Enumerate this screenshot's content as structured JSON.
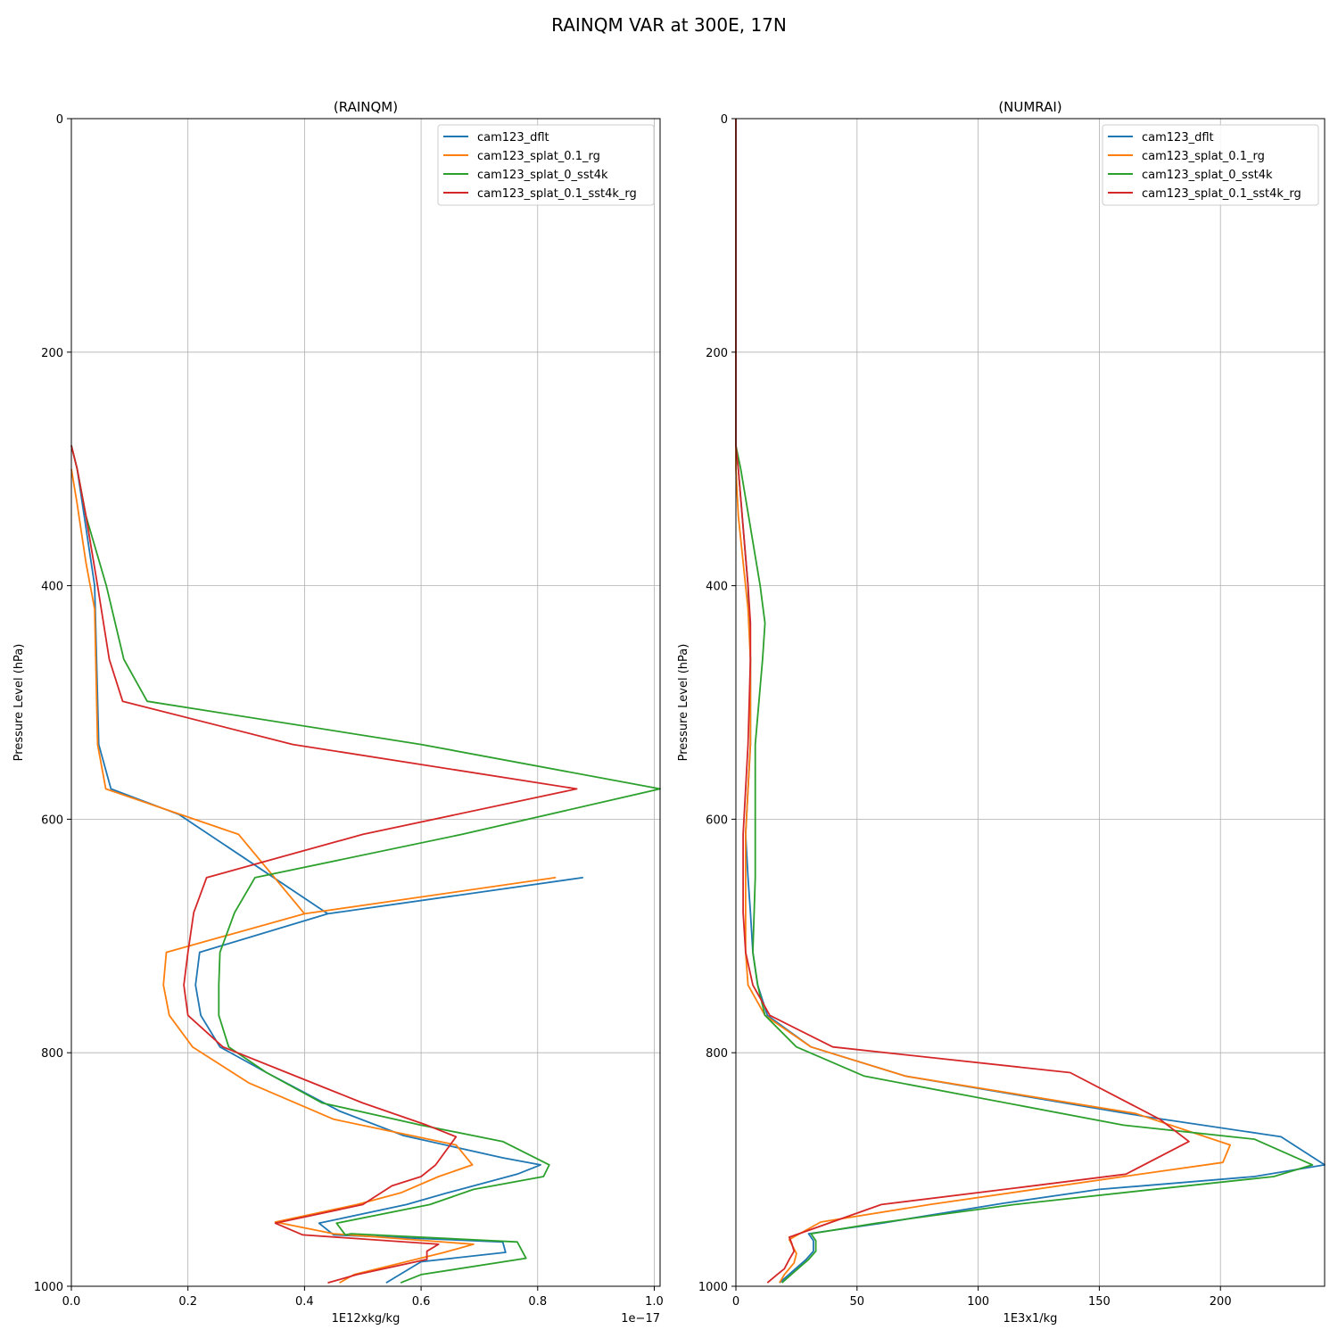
{
  "figure_title": "RAINQM VAR at 300E, 17N",
  "chart_data": [
    {
      "type": "line",
      "title": "(RAINQM)",
      "xlabel": "1E12xkg/kg",
      "ylabel": "Pressure Level (hPa)",
      "x_offset_label": "1e−17",
      "xlim": [
        0,
        1.01
      ],
      "ylim": [
        1000,
        0
      ],
      "xticks": [
        0.0,
        0.2,
        0.4,
        0.6,
        0.8,
        1.0
      ],
      "xtick_labels": [
        "0.0",
        "0.2",
        "0.4",
        "0.6",
        "0.8",
        "1.0"
      ],
      "yticks": [
        0,
        200,
        400,
        600,
        800,
        1000
      ],
      "ytick_labels": [
        "0",
        "200",
        "400",
        "600",
        "800",
        "1000"
      ],
      "grid": true,
      "legend_position": "top-right",
      "series": [
        {
          "name": "cam123_dflt",
          "color": "#1f77b4",
          "x": [
            0,
            0.01,
            0.025,
            0.04,
            0.047,
            0.068,
            0.185,
            0.44,
            0.877,
            0.44,
            0.22,
            0.213,
            0.222,
            0.255,
            0.335,
            0.46,
            0.57,
            0.74,
            0.805,
            0.765,
            0.645,
            0.575,
            0.425,
            0.45,
            0.74,
            0.745,
            0.6,
            0.54
          ],
          "y": [
            280,
            300,
            350,
            400,
            536,
            574,
            596,
            681,
            650,
            681,
            714,
            742,
            768,
            795,
            817,
            850,
            871,
            890,
            896,
            904,
            920,
            930,
            946,
            956,
            962,
            971,
            979,
            997
          ]
        },
        {
          "name": "cam123_splat_0.1_rg",
          "color": "#ff7f0e",
          "x": [
            0,
            0.01,
            0.025,
            0.04,
            0.045,
            0.059,
            0.287,
            0.4,
            0.83,
            0.4,
            0.163,
            0.158,
            0.168,
            0.208,
            0.305,
            0.45,
            0.66,
            0.688,
            0.63,
            0.565,
            0.49,
            0.35,
            0.45,
            0.69,
            0.64,
            0.485,
            0.46
          ],
          "y": [
            300,
            330,
            380,
            420,
            536,
            574,
            613,
            681,
            650,
            681,
            714,
            742,
            768,
            795,
            826,
            857,
            879,
            896,
            906,
            920,
            930,
            945,
            955,
            964,
            971,
            990,
            997
          ]
        },
        {
          "name": "cam123_splat_0_sst4k",
          "color": "#2ca02c",
          "x": [
            0,
            0.01,
            0.025,
            0.06,
            0.09,
            0.13,
            0.6,
            1.01,
            0.67,
            0.315,
            0.28,
            0.255,
            0.253,
            0.253,
            0.27,
            0.335,
            0.43,
            0.6,
            0.74,
            0.82,
            0.81,
            0.69,
            0.615,
            0.455,
            0.47,
            0.48,
            0.765,
            0.78,
            0.6,
            0.565
          ],
          "y": [
            280,
            300,
            340,
            400,
            463,
            499,
            536,
            574,
            613,
            650,
            680,
            714,
            742,
            768,
            795,
            817,
            843,
            862,
            876,
            896,
            906,
            917,
            930,
            946,
            956,
            955,
            962,
            976,
            990,
            997
          ]
        },
        {
          "name": "cam123_splat_0.1_sst4k_rg",
          "color": "#d62728",
          "x": [
            0,
            0.01,
            0.025,
            0.045,
            0.065,
            0.088,
            0.38,
            0.867,
            0.5,
            0.232,
            0.21,
            0.2,
            0.193,
            0.2,
            0.26,
            0.37,
            0.5,
            0.61,
            0.66,
            0.625,
            0.6,
            0.55,
            0.5,
            0.35,
            0.397,
            0.63,
            0.61,
            0.61,
            0.49,
            0.44
          ],
          "y": [
            280,
            300,
            340,
            400,
            463,
            499,
            536,
            574,
            613,
            650,
            680,
            714,
            742,
            768,
            795,
            817,
            843,
            862,
            872,
            896,
            906,
            914,
            930,
            946,
            956,
            964,
            970,
            977,
            990,
            997
          ]
        }
      ]
    },
    {
      "type": "line",
      "title": "(NUMRAI)",
      "xlabel": "1E3x1/kg",
      "ylabel": "Pressure Level (hPa)",
      "xlim": [
        0,
        243
      ],
      "ylim": [
        1000,
        0
      ],
      "xticks": [
        0,
        50,
        100,
        150,
        200
      ],
      "xtick_labels": [
        "0",
        "50",
        "100",
        "150",
        "200"
      ],
      "yticks": [
        0,
        200,
        400,
        600,
        800,
        1000
      ],
      "ytick_labels": [
        "0",
        "200",
        "400",
        "600",
        "800",
        "1000"
      ],
      "grid": true,
      "legend_position": "top-right",
      "series": [
        {
          "name": "cam123_dflt",
          "color": "#1f77b4",
          "x": [
            0,
            0,
            1,
            3,
            5,
            6,
            6,
            5,
            4,
            5,
            6,
            7,
            9,
            13,
            31,
            70,
            170,
            225,
            243,
            214,
            150,
            110,
            60,
            30,
            32,
            32,
            29,
            18
          ],
          "y": [
            0,
            280,
            300,
            350,
            400,
            463,
            536,
            574,
            613,
            650,
            680,
            714,
            742,
            768,
            795,
            820,
            855,
            872,
            896,
            906,
            917,
            929,
            946,
            955,
            961,
            970,
            977,
            997
          ]
        },
        {
          "name": "cam123_splat_0.1_rg",
          "color": "#ff7f0e",
          "x": [
            0,
            0,
            1,
            3,
            5,
            6,
            6,
            5,
            4,
            4,
            4,
            4,
            5,
            12,
            31,
            70,
            165,
            204,
            201,
            160,
            120,
            80,
            35,
            22,
            25,
            24,
            20,
            18
          ],
          "y": [
            0,
            300,
            340,
            380,
            420,
            463,
            536,
            574,
            613,
            650,
            680,
            714,
            742,
            768,
            795,
            820,
            852,
            879,
            894,
            906,
            918,
            930,
            945,
            960,
            972,
            980,
            990,
            997
          ]
        },
        {
          "name": "cam123_splat_0_sst4k",
          "color": "#2ca02c",
          "x": [
            0,
            0,
            2,
            6,
            10,
            12,
            11,
            8,
            8,
            8,
            8,
            7,
            9,
            12,
            25,
            53,
            160,
            214,
            238,
            222,
            168,
            115,
            58,
            31,
            33,
            33,
            30,
            19
          ],
          "y": [
            0,
            280,
            300,
            350,
            400,
            432,
            463,
            536,
            574,
            613,
            650,
            714,
            742,
            768,
            795,
            820,
            862,
            874,
            896,
            906,
            918,
            930,
            946,
            955,
            961,
            970,
            977,
            997
          ]
        },
        {
          "name": "cam123_splat_0.1_sst4k_rg",
          "color": "#d62728",
          "x": [
            0,
            0,
            1,
            3,
            5,
            6,
            6,
            5,
            4,
            3,
            3,
            3,
            4,
            7,
            14,
            40,
            138,
            175,
            187,
            161,
            115,
            60,
            22,
            23,
            24,
            22,
            20,
            17,
            13
          ],
          "y": [
            0,
            280,
            300,
            350,
            400,
            432,
            463,
            536,
            574,
            613,
            650,
            680,
            714,
            742,
            768,
            795,
            817,
            857,
            876,
            904,
            916,
            930,
            958,
            963,
            970,
            977,
            985,
            990,
            997
          ]
        }
      ]
    }
  ]
}
